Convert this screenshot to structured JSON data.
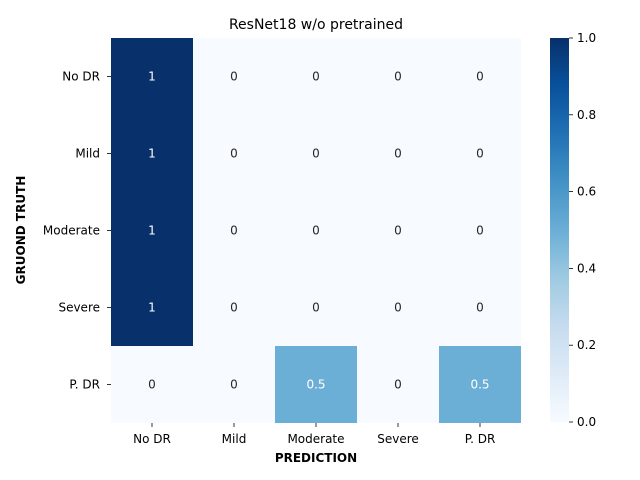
{
  "chart_data": {
    "type": "heatmap",
    "title": "ResNet18 w/o pretrained",
    "xlabel": "PREDICTION",
    "ylabel": "GRUOND TRUTH",
    "x_categories": [
      "No DR",
      "Mild",
      "Moderate",
      "Severe",
      "P. DR"
    ],
    "y_categories": [
      "No DR",
      "Mild",
      "Moderate",
      "Severe",
      "P. DR"
    ],
    "values": [
      [
        1,
        0,
        0,
        0,
        0
      ],
      [
        1,
        0,
        0,
        0,
        0
      ],
      [
        1,
        0,
        0,
        0,
        0
      ],
      [
        1,
        0,
        0,
        0,
        0
      ],
      [
        0,
        0,
        0.5,
        0,
        0.5
      ]
    ],
    "value_labels": [
      [
        "1",
        "0",
        "0",
        "0",
        "0"
      ],
      [
        "1",
        "0",
        "0",
        "0",
        "0"
      ],
      [
        "1",
        "0",
        "0",
        "0",
        "0"
      ],
      [
        "1",
        "0",
        "0",
        "0",
        "0"
      ],
      [
        "0",
        "0",
        "0.5",
        "0",
        "0.5"
      ]
    ],
    "colorbar": {
      "colormap": "Blues",
      "range": [
        0,
        1
      ],
      "ticks": [
        "0.0",
        "0.2",
        "0.4",
        "0.6",
        "0.8",
        "1.0"
      ]
    }
  }
}
